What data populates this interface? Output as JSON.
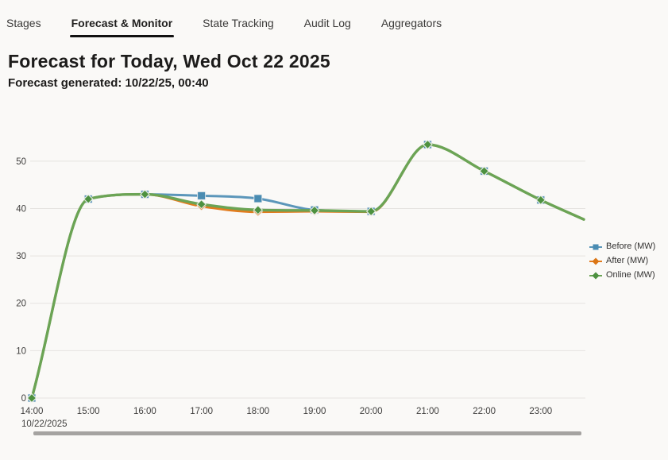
{
  "tabs": {
    "items": [
      {
        "label": "Stages",
        "active": false
      },
      {
        "label": "Forecast & Monitor",
        "active": true
      },
      {
        "label": "State Tracking",
        "active": false
      },
      {
        "label": "Audit Log",
        "active": false
      },
      {
        "label": "Aggregators",
        "active": false
      }
    ]
  },
  "header": {
    "title": "Forecast for Today, Wed Oct 22 2025",
    "subtitle": "Forecast generated: 10/22/25, 00:40"
  },
  "chart_data": {
    "type": "line",
    "x_labels": [
      "14:00",
      "15:00",
      "16:00",
      "17:00",
      "18:00",
      "19:00",
      "20:00",
      "21:00",
      "22:00",
      "23:00"
    ],
    "x_date_label": "10/22/2025",
    "yticks": [
      0,
      10,
      20,
      30,
      40,
      50
    ],
    "ylim": [
      0,
      55.5
    ],
    "grid": true,
    "legend_position": "right",
    "gridline_color": "#e5e3e0",
    "tick_color": "#3f3e3d",
    "series": [
      {
        "name": "Before (MW)",
        "color": "#5b96ba",
        "marker": "square",
        "marker_fill": "#4a8cb2",
        "values": [
          0,
          42,
          43,
          42.7,
          42.1,
          39.7,
          39.4,
          53.5,
          47.9,
          41.8
        ],
        "tail_value": 37.7
      },
      {
        "name": "After (MW)",
        "color": "#e27c1e",
        "marker": "diamond",
        "marker_fill": "#db7514",
        "values": [
          0,
          42,
          43,
          40.5,
          39.3,
          39.4,
          39.3,
          53.5,
          47.9,
          41.8
        ],
        "tail_value": 37.7
      },
      {
        "name": "Online (MW)",
        "color": "#6ba455",
        "marker": "diamond",
        "marker_fill": "#4d9140",
        "values": [
          0,
          42,
          43,
          40.9,
          39.7,
          39.6,
          39.4,
          53.5,
          47.9,
          41.8
        ],
        "tail_value": 37.7
      }
    ]
  }
}
